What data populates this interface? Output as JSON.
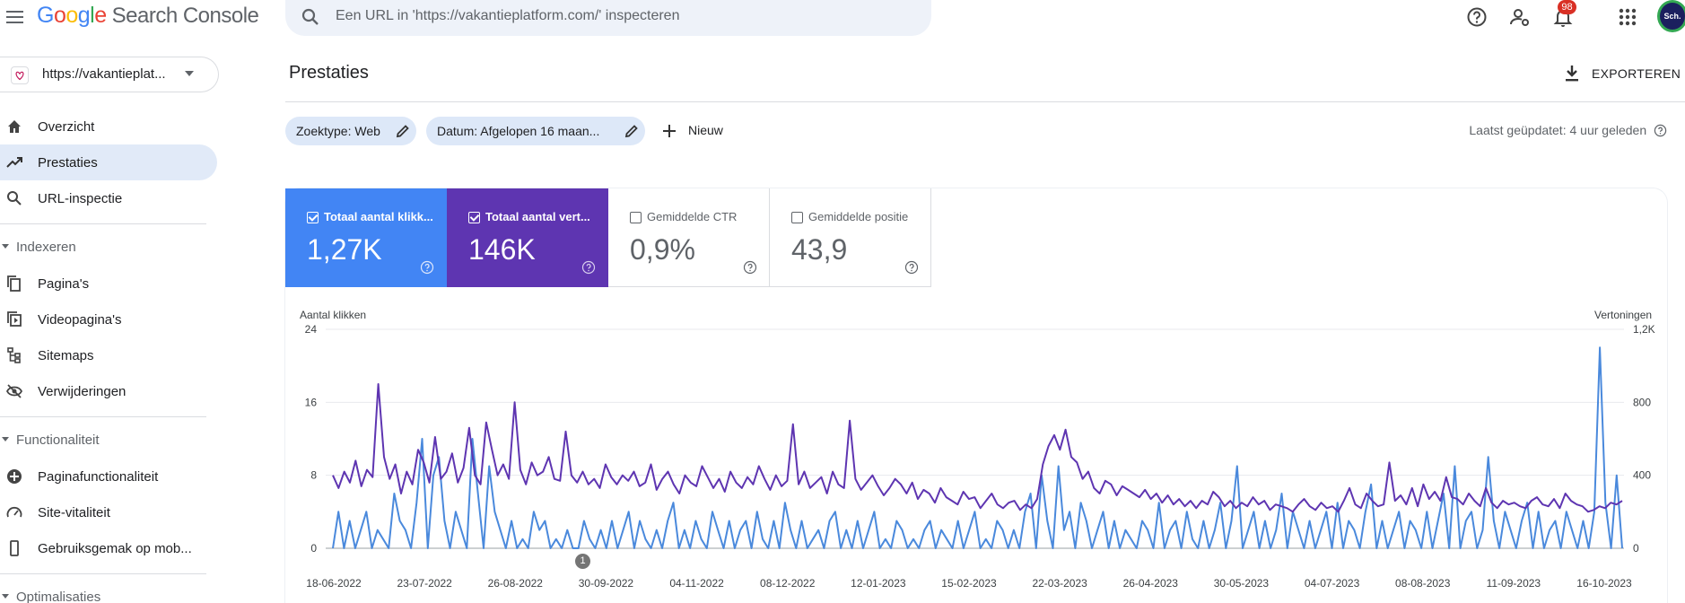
{
  "header": {
    "logo": {
      "g1": "G",
      "g2": "o",
      "g3": "o",
      "g4": "g",
      "g5": "l",
      "g6": "e",
      "product": "Search Console"
    },
    "search_placeholder": "Een URL in 'https://vakantieplatform.com/' inspecteren",
    "notifications_count": "98",
    "avatar_text": "Sch."
  },
  "sidebar": {
    "property": "https://vakantieplat...",
    "top_items": [
      {
        "label": "Overzicht",
        "icon": "home-icon"
      },
      {
        "label": "Prestaties",
        "icon": "trending-icon",
        "active": true
      },
      {
        "label": "URL-inspectie",
        "icon": "search-icon"
      }
    ],
    "sections": [
      {
        "title": "Indexeren",
        "items": [
          {
            "label": "Pagina's",
            "icon": "pages-icon"
          },
          {
            "label": "Videopagina's",
            "icon": "video-pages-icon"
          },
          {
            "label": "Sitemaps",
            "icon": "sitemap-icon"
          },
          {
            "label": "Verwijderingen",
            "icon": "removals-icon"
          }
        ]
      },
      {
        "title": "Functionaliteit",
        "items": [
          {
            "label": "Paginafunctionaliteit",
            "icon": "page-experience-icon"
          },
          {
            "label": "Site-vitaliteit",
            "icon": "speed-icon"
          },
          {
            "label": "Gebruiksgemak op mob...",
            "icon": "mobile-icon"
          }
        ]
      },
      {
        "title": "Optimalisaties",
        "items": []
      }
    ]
  },
  "main": {
    "title": "Prestaties",
    "export_label": "EXPORTEREN",
    "filters": [
      {
        "label": "Zoektype: Web"
      },
      {
        "label": "Datum: Afgelopen 16 maan..."
      }
    ],
    "new_label": "Nieuw",
    "last_updated": "Laatst geüpdatet: 4 uur geleden",
    "metrics": [
      {
        "label": "Totaal aantal klikk...",
        "value": "1,27K",
        "checked": true,
        "color": "#4285f4"
      },
      {
        "label": "Totaal aantal vert...",
        "value": "146K",
        "checked": true,
        "color": "#5e35b1"
      },
      {
        "label": "Gemiddelde CTR",
        "value": "0,9%",
        "checked": false
      },
      {
        "label": "Gemiddelde positie",
        "value": "43,9",
        "checked": false
      }
    ],
    "annotation": "1"
  },
  "chart_data": {
    "type": "line",
    "left_axis_title": "Aantal klikken",
    "right_axis_title": "Vertoningen",
    "left_ticks": [
      "24",
      "16",
      "8",
      "0"
    ],
    "right_ticks": [
      "1,2K",
      "800",
      "400",
      "0"
    ],
    "ylim_left": [
      0,
      24
    ],
    "ylim_right": [
      0,
      1200
    ],
    "x_ticks": [
      "18-06-2022",
      "23-07-2022",
      "26-08-2022",
      "30-09-2022",
      "04-11-2022",
      "08-12-2022",
      "12-01-2023",
      "15-02-2023",
      "22-03-2023",
      "26-04-2023",
      "30-05-2023",
      "04-07-2023",
      "08-08-2023",
      "11-09-2023",
      "16-10-2023"
    ],
    "grid": true,
    "series": [
      {
        "name": "Totaal aantal klikken",
        "axis": "left",
        "color": "#4a89dc",
        "values": [
          0,
          4,
          0,
          3,
          0,
          2,
          4,
          0,
          2,
          1,
          0,
          6,
          3,
          2,
          0,
          5,
          12,
          0,
          8,
          10,
          3,
          0,
          4,
          2,
          0,
          12,
          6,
          0,
          9,
          4,
          2,
          0,
          3,
          0,
          1,
          0,
          4,
          2,
          3,
          0,
          1,
          0,
          2,
          0,
          0,
          3,
          1,
          0,
          2,
          0,
          3,
          0,
          2,
          4,
          0,
          3,
          1,
          0,
          2,
          0,
          3,
          5,
          0,
          2,
          0,
          3,
          1,
          0,
          4,
          2,
          0,
          3,
          0,
          2,
          3,
          0,
          4,
          1,
          0,
          3,
          0,
          5,
          2,
          0,
          3,
          0,
          1,
          2,
          0,
          3,
          4,
          0,
          2,
          0,
          3,
          0,
          2,
          4,
          0,
          1,
          0,
          3,
          2,
          0,
          1,
          0,
          2,
          3,
          0,
          2,
          1,
          0,
          3,
          0,
          2,
          4,
          0,
          1,
          0,
          3,
          2,
          0,
          2,
          0,
          4,
          6,
          0,
          8,
          3,
          0,
          9,
          2,
          4,
          0,
          5,
          3,
          0,
          2,
          4,
          0,
          3,
          0,
          2,
          1,
          0,
          3,
          2,
          0,
          5,
          0,
          2,
          3,
          0,
          4,
          1,
          0,
          3,
          0,
          2,
          5,
          0,
          3,
          9,
          0,
          2,
          4,
          0,
          3,
          0,
          2,
          6,
          0,
          4,
          2,
          0,
          3,
          0,
          2,
          4,
          0,
          5,
          0,
          3,
          2,
          0,
          4,
          7,
          0,
          3,
          0,
          2,
          4,
          0,
          3,
          2,
          0,
          4,
          0,
          3,
          6,
          0,
          9,
          0,
          3,
          4,
          0,
          2,
          10,
          3,
          0,
          4,
          2,
          0,
          3,
          5,
          0,
          4,
          0,
          2,
          3,
          0,
          4,
          2,
          0,
          3,
          0,
          4,
          22,
          5,
          0,
          8,
          0
        ]
      },
      {
        "name": "Totaal aantal vertoningen",
        "axis": "right",
        "color": "#5e35b1",
        "values": [
          400,
          330,
          420,
          360,
          480,
          340,
          430,
          390,
          900,
          500,
          380,
          460,
          300,
          420,
          350,
          540,
          470,
          360,
          610,
          380,
          420,
          520,
          360,
          440,
          660,
          400,
          350,
          690,
          540,
          400,
          460,
          380,
          800,
          430,
          350,
          470,
          400,
          420,
          500,
          380,
          370,
          640,
          400,
          360,
          420,
          350,
          380,
          330,
          460,
          390,
          350,
          400,
          370,
          420,
          340,
          360,
          460,
          320,
          380,
          420,
          350,
          300,
          400,
          360,
          340,
          450,
          390,
          330,
          380,
          310,
          420,
          360,
          330,
          390,
          350,
          450,
          380,
          320,
          400,
          340,
          370,
          680,
          350,
          420,
          330,
          360,
          390,
          300,
          420,
          350,
          330,
          700,
          380,
          320,
          360,
          400,
          340,
          290,
          330,
          380,
          350,
          300,
          360,
          270,
          320,
          300,
          250,
          330,
          280,
          260,
          240,
          310,
          270,
          280,
          220,
          260,
          300,
          240,
          220,
          250,
          260,
          210,
          240,
          220,
          270,
          460,
          560,
          620,
          540,
          650,
          500,
          470,
          380,
          420,
          330,
          300,
          370,
          350,
          290,
          340,
          320,
          300,
          280,
          320,
          270,
          300,
          250,
          290,
          240,
          270,
          230,
          260,
          220,
          260,
          240,
          310,
          280,
          230,
          260,
          220,
          250,
          230,
          280,
          240,
          260,
          210,
          240,
          230,
          220,
          200,
          240,
          270,
          230,
          210,
          250,
          220,
          230,
          200,
          260,
          330,
          240,
          220,
          300,
          260,
          230,
          240,
          470,
          260,
          290,
          240,
          330,
          230,
          350,
          270,
          310,
          260,
          390,
          280,
          270,
          240,
          300,
          260,
          230,
          330,
          250,
          220,
          260,
          240,
          250,
          230,
          220,
          260,
          280,
          240,
          230,
          270,
          220,
          300,
          260,
          240,
          230,
          200,
          210,
          230,
          220,
          250,
          240,
          260
        ]
      }
    ]
  }
}
